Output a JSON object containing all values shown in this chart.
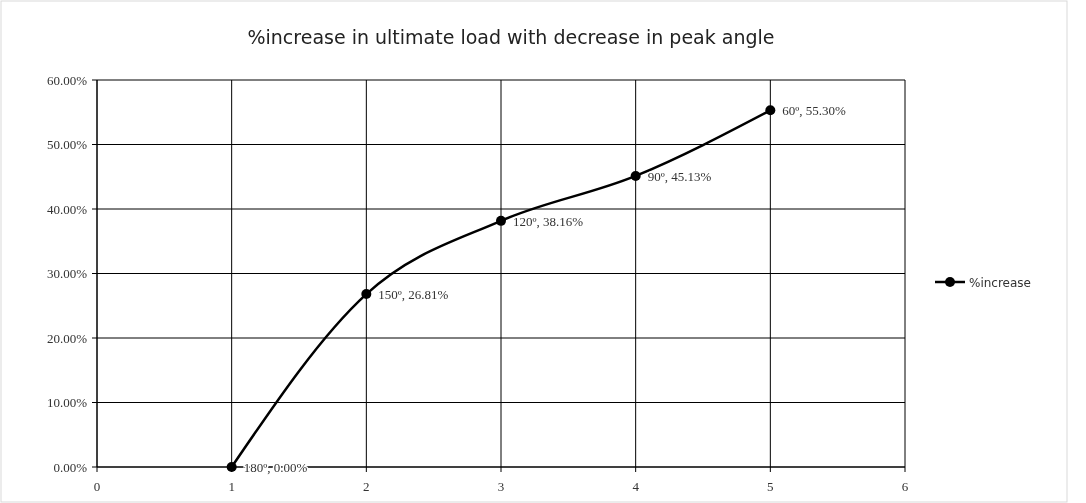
{
  "chart_data": {
    "type": "line",
    "title": "%increase in ultimate load with decrease in peak angle",
    "x": [
      1,
      2,
      3,
      4,
      5
    ],
    "series": [
      {
        "name": "%increase",
        "color": "#000000",
        "values": [
          0,
          26.81,
          38.16,
          45.13,
          55.3
        ],
        "value_labels": [
          "180º, 0.00%",
          "150º, 26.81%",
          "120º, 38.16%",
          "90º, 45.13%",
          "60º, 55.30%"
        ]
      }
    ],
    "xlim": [
      0,
      6
    ],
    "xticks": [
      0,
      1,
      2,
      3,
      4,
      5,
      6
    ],
    "ylim": [
      0,
      60
    ],
    "yticks": [
      {
        "value": 0,
        "label": "0.00%"
      },
      {
        "value": 10,
        "label": "10.00%"
      },
      {
        "value": 20,
        "label": "20.00%"
      },
      {
        "value": 30,
        "label": "30.00%"
      },
      {
        "value": 40,
        "label": "40.00%"
      },
      {
        "value": 50,
        "label": "50.00%"
      },
      {
        "value": 60,
        "label": "60.00%"
      }
    ],
    "grid": true,
    "legend": "right",
    "marker": "circle",
    "line_style": "solid"
  }
}
